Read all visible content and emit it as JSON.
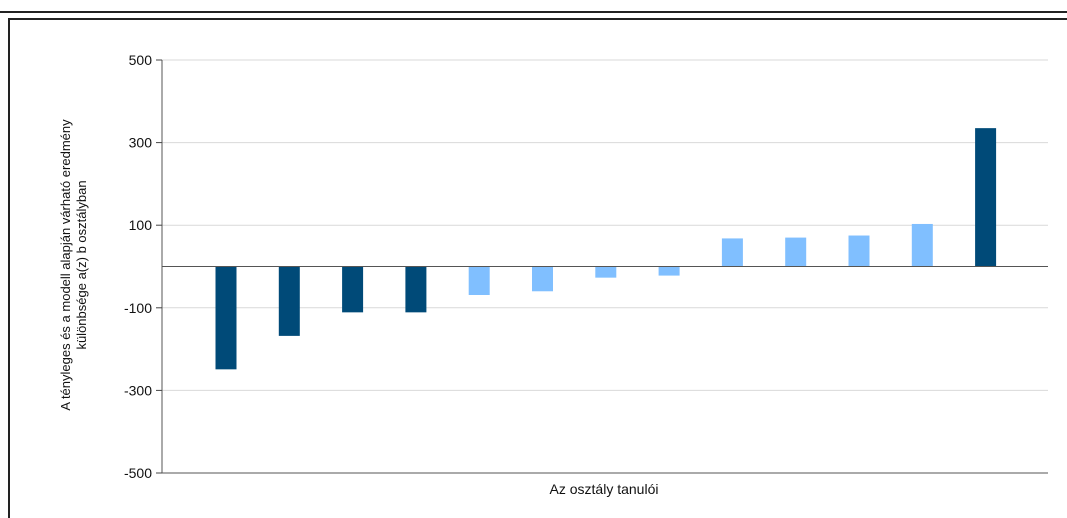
{
  "chart_data": {
    "type": "bar",
    "title": "",
    "xlabel": "Az osztály tanulói",
    "ylabel_lines": [
      "A tényleges és a modell alapján várható eredmény",
      "különbsége a(z) b osztályban"
    ],
    "ylim": [
      -500,
      500
    ],
    "yticks": [
      500,
      300,
      100,
      -100,
      -300,
      -500
    ],
    "grid": true,
    "legend": "none",
    "colors": {
      "dark": "#004a78",
      "light": "#80bfff"
    },
    "bars": [
      {
        "value": -249,
        "color": "dark"
      },
      {
        "value": -168,
        "color": "dark"
      },
      {
        "value": -111,
        "color": "dark"
      },
      {
        "value": -111,
        "color": "dark"
      },
      {
        "value": -69,
        "color": "light"
      },
      {
        "value": -60,
        "color": "light"
      },
      {
        "value": -27,
        "color": "light"
      },
      {
        "value": -22,
        "color": "light"
      },
      {
        "value": 68,
        "color": "light"
      },
      {
        "value": 70,
        "color": "light"
      },
      {
        "value": 75,
        "color": "light"
      },
      {
        "value": 103,
        "color": "light"
      },
      {
        "value": 335,
        "color": "dark"
      }
    ]
  }
}
